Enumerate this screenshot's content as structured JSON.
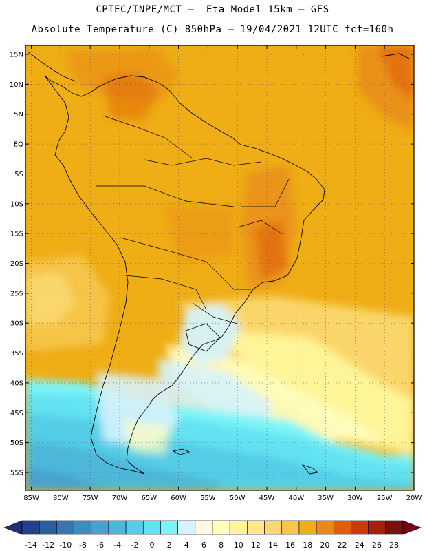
{
  "title_line1": "CPTEC/INPE/MCT –  Eta Model 15km – GFS",
  "title_line2": "Absolute Temperature (C) 850hPa – 19/04/2021 12UTC fct=160h",
  "lat_labels": [
    "15N",
    "10N",
    "5N",
    "EQ",
    "5S",
    "10S",
    "15S",
    "20S",
    "25S",
    "30S",
    "35S",
    "40S",
    "45S",
    "50S",
    "55S"
  ],
  "lat_values": [
    15,
    10,
    5,
    0,
    -5,
    -10,
    -15,
    -20,
    -25,
    -30,
    -35,
    -40,
    -45,
    -50,
    -55
  ],
  "lon_labels": [
    "85W",
    "80W",
    "75W",
    "70W",
    "65W",
    "60W",
    "55W",
    "50W",
    "45W",
    "40W",
    "35W",
    "30W",
    "25W",
    "20W"
  ],
  "lon_values": [
    -85,
    -80,
    -75,
    -70,
    -65,
    -60,
    -55,
    -50,
    -45,
    -40,
    -35,
    -30,
    -25,
    -20
  ],
  "lon_range": [
    -86,
    -20
  ],
  "lat_range": [
    -58,
    16.5
  ],
  "colorbar": {
    "labels": [
      "-14",
      "-12",
      "-10",
      "-8",
      "-6",
      "-4",
      "-2",
      "0",
      "2",
      "4",
      "6",
      "8",
      "10",
      "12",
      "14",
      "16",
      "18",
      "20",
      "22",
      "24",
      "26",
      "28"
    ],
    "colors": [
      "#243f8e",
      "#2f5e9e",
      "#3876ad",
      "#3f8cbe",
      "#47a2cd",
      "#4db7d9",
      "#55cde7",
      "#64e2f2",
      "#7cf4f6",
      "#d6f2fb",
      "#fff7e8",
      "#fffcbd",
      "#fff59b",
      "#fde98a",
      "#fad86f",
      "#f6c64e",
      "#efad16",
      "#e8891a",
      "#e05d0c",
      "#cc3a0b",
      "#a61f0d",
      "#7a0f0f"
    ],
    "min_color": "#1f2e78",
    "max_color": "#78001a"
  }
}
